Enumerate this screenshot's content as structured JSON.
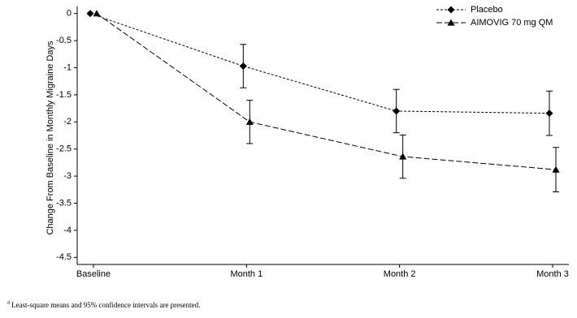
{
  "chart_data": {
    "type": "line",
    "y_label": "Change From Baseline in Monthly Migraine Days",
    "categories": [
      "Baseline",
      "Month 1",
      "Month 2",
      "Month 3"
    ],
    "series": [
      {
        "name": "Placebo",
        "color": "#000000",
        "marker": "diamond",
        "line_style": "short-dash",
        "values": [
          0,
          -0.97,
          -1.8,
          -1.84
        ],
        "errors": [
          null,
          0.4,
          0.4,
          0.41
        ]
      },
      {
        "name": "AIMOVIG 70 mg QM",
        "color": "#000000",
        "marker": "triangle",
        "line_style": "long-dash",
        "values": [
          0,
          -2.0,
          -2.64,
          -2.88
        ],
        "errors": [
          null,
          0.4,
          0.4,
          0.41
        ]
      }
    ],
    "ylim": [
      -4.6,
      0.1
    ],
    "yticks": [
      0,
      -0.5,
      -1,
      -1.5,
      -2,
      -2.5,
      -3,
      -3.5,
      -4,
      -4.5
    ],
    "grid": false,
    "legend": "upper right"
  },
  "footnote": {
    "marker": "a",
    "text": "Least-square means and 95% confidence intervals are presented."
  }
}
